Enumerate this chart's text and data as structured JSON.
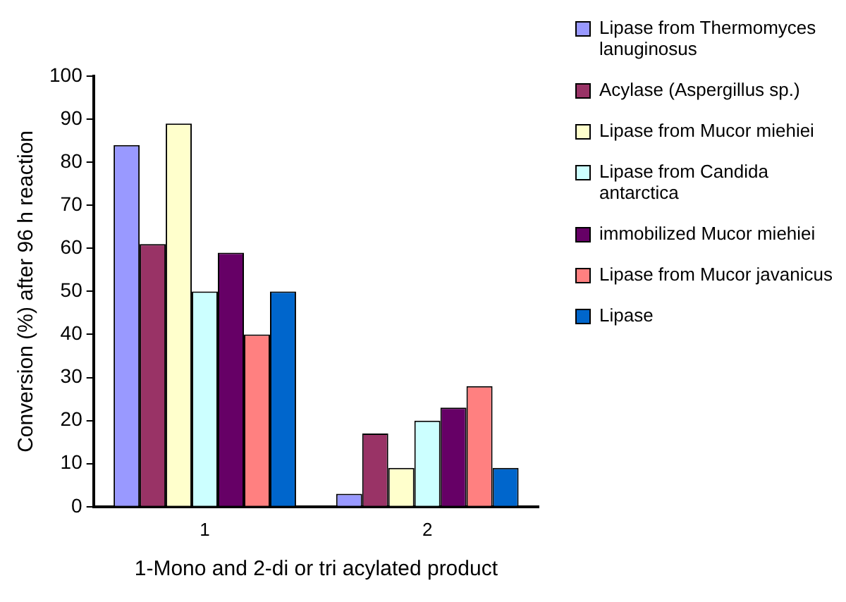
{
  "chart_data": {
    "type": "bar",
    "xlabel": "1-Mono and 2-di or tri acylated product",
    "ylabel": "Conversion (%) after 96 h reaction",
    "categories": [
      "1",
      "2"
    ],
    "ylim": [
      0,
      100
    ],
    "yticks": [
      0,
      10,
      20,
      30,
      40,
      50,
      60,
      70,
      80,
      90,
      100
    ],
    "grid": false,
    "legend": "right",
    "series": [
      {
        "name": "Lipase from Thermomyces lanuginosus",
        "color": "#9999ff",
        "values": [
          84,
          3
        ]
      },
      {
        "name": "Acylase (Aspergillus sp.)",
        "color": "#993366",
        "values": [
          61,
          17
        ]
      },
      {
        "name": "Lipase from Mucor miehiei",
        "color": "#ffffcc",
        "values": [
          89,
          9
        ]
      },
      {
        "name": "Lipase from Candida antarctica",
        "color": "#ccffff",
        "values": [
          50,
          20
        ]
      },
      {
        "name": "immobilized Mucor miehiei",
        "color": "#660066",
        "values": [
          59,
          23
        ]
      },
      {
        "name": "Lipase from Mucor javanicus",
        "color": "#ff8080",
        "values": [
          40,
          28
        ]
      },
      {
        "name": "Lipase",
        "color": "#0066cc",
        "values": [
          50,
          9
        ]
      }
    ]
  }
}
